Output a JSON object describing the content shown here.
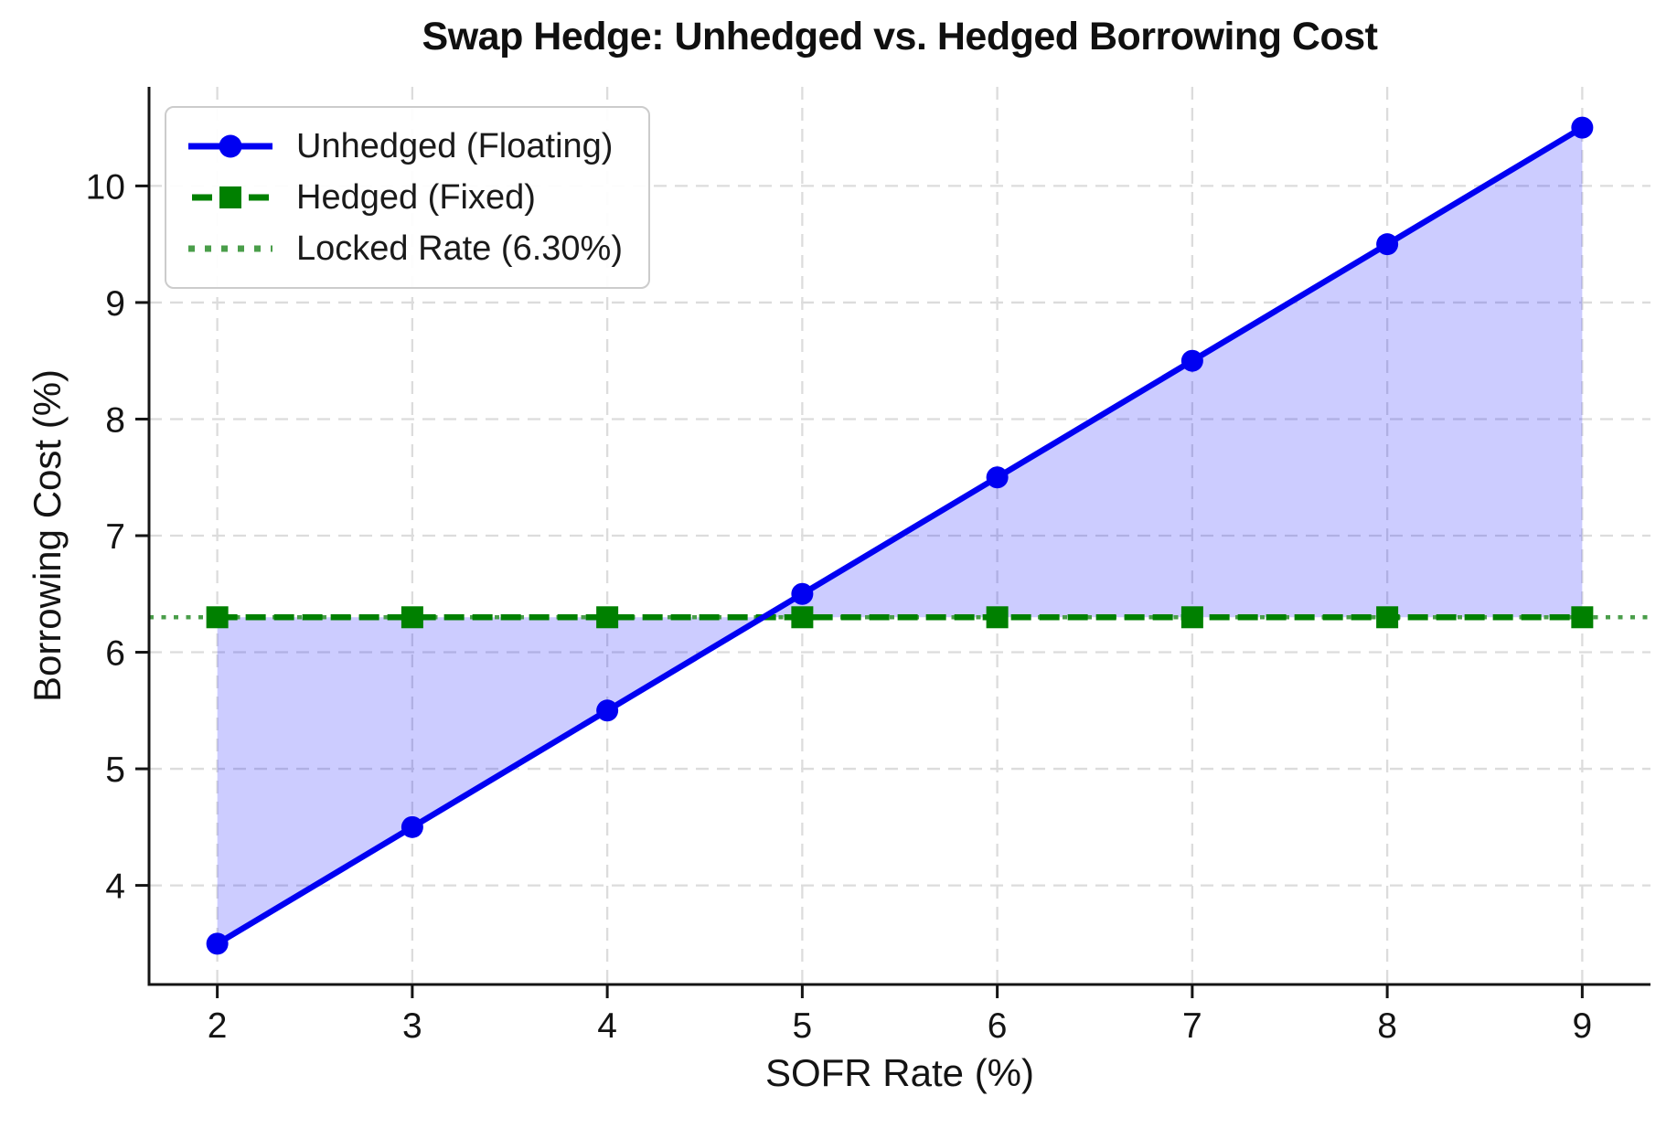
{
  "chart_data": {
    "type": "line",
    "title": "Swap Hedge: Unhedged vs. Hedged Borrowing Cost",
    "xlabel": "SOFR Rate (%)",
    "ylabel": "Borrowing Cost (%)",
    "x": [
      2,
      3,
      4,
      5,
      6,
      7,
      8,
      9
    ],
    "series": [
      {
        "name": "Unhedged (Floating)",
        "values": [
          3.5,
          4.5,
          5.5,
          6.5,
          7.5,
          8.5,
          9.5,
          10.5
        ],
        "color": "#0000f2",
        "style": "solid",
        "marker": "circle"
      },
      {
        "name": "Hedged (Fixed)",
        "values": [
          6.3,
          6.3,
          6.3,
          6.3,
          6.3,
          6.3,
          6.3,
          6.3
        ],
        "color": "#008000",
        "style": "dashed",
        "marker": "square"
      },
      {
        "name": "Locked Rate (6.30%)",
        "value": 6.3,
        "color": "#4a9e4a",
        "style": "dotted",
        "span": "full",
        "marker": "none"
      }
    ],
    "fill_between": {
      "between": [
        "Unhedged (Floating)",
        "Hedged (Fixed)"
      ],
      "color": "rgba(0,0,255,0.2)"
    },
    "xticks": [
      2,
      3,
      4,
      5,
      6,
      7,
      8,
      9
    ],
    "yticks": [
      4,
      5,
      6,
      7,
      8,
      9,
      10
    ],
    "xlim": [
      1.65,
      9.35
    ],
    "ylim": [
      3.15,
      10.85
    ],
    "grid": true,
    "grid_style": "dashed",
    "legend_position": "upper left",
    "colors": {
      "grid": "#dcdcdc",
      "axis": "#141414",
      "text": "#141414"
    }
  }
}
